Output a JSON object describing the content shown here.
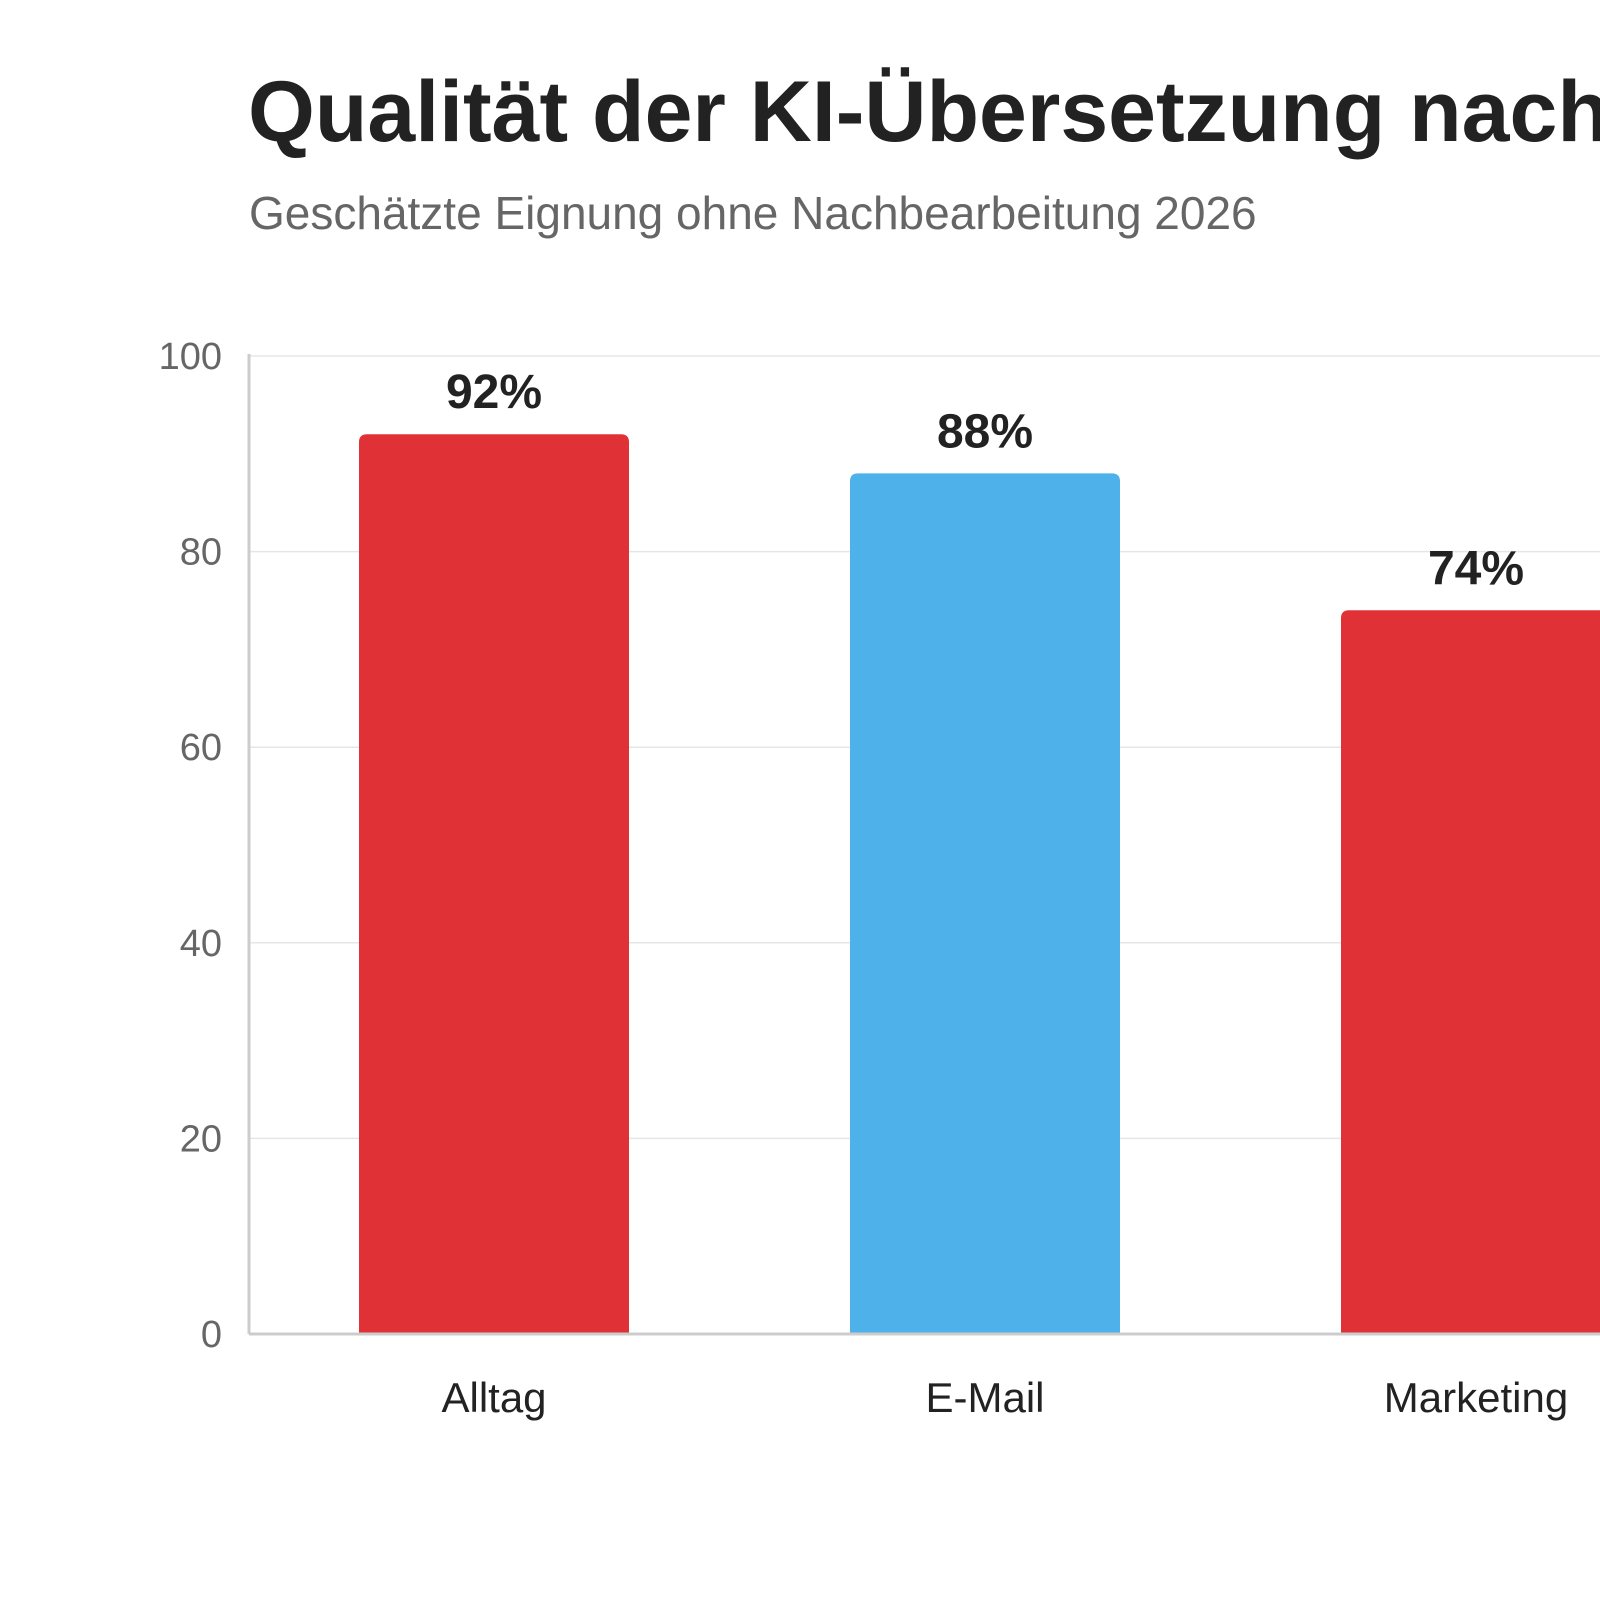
{
  "chart_data": {
    "type": "bar",
    "title": "Qualität der KI-Übersetzung nach",
    "subtitle": "Geschätzte Eignung ohne Nachbearbeitung 2026",
    "xlabel": "",
    "ylabel": "",
    "categories": [
      "Alltag",
      "E-Mail",
      "Marketing"
    ],
    "values": [
      92,
      88,
      74
    ],
    "value_labels": [
      "92%",
      "88%",
      "74%"
    ],
    "bar_colors": [
      "#e03236",
      "#4fb1ea",
      "#e03236"
    ],
    "ylim": [
      0,
      100
    ],
    "yticks": [
      0,
      20,
      40,
      60,
      80,
      100
    ],
    "ytick_labels": [
      "0",
      "20",
      "40",
      "60",
      "80",
      "100"
    ],
    "grid": true,
    "legend": "none"
  }
}
